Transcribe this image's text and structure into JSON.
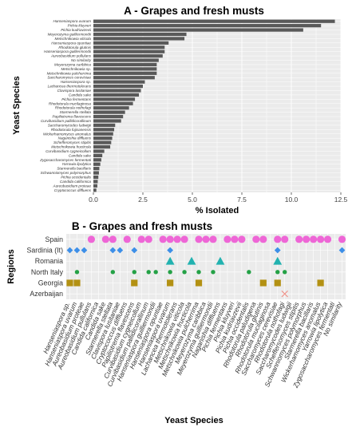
{
  "colors": {
    "bar": "#595959",
    "panel_bg": "#ebebeb",
    "grid_major": "#ffffff",
    "spain": "#ee66d6",
    "sardinia": "#3d8fe8",
    "romania": "#22b2b0",
    "north_italy": "#24a146",
    "georgia": "#b39113",
    "azerbaijan": "#f08a80"
  },
  "chart_data": [
    {
      "type": "bar",
      "orientation": "horizontal",
      "title": "A - Grapes and fresh musts",
      "xlabel": "% Isolated",
      "ylabel": "Yeast Species",
      "xlim": [
        0,
        12.5
      ],
      "xticks": [
        "0.0",
        "2.5",
        "5.0",
        "7.5",
        "10.0",
        "12.5"
      ],
      "grid": true,
      "categories": [
        "Hanseniaspora uvarum",
        "Pichia kluyveri",
        "Pichia kudriavzevii",
        "Meyerozyma guilliermondii",
        "Metschnikowia viticola",
        "Hanseniaspora opuntiae",
        "Rhodotorula glutinis",
        "Hanseniaspora guilliermondii",
        "Aureobasidium pullulans",
        "No similarity",
        "Meyerozyma caribbica",
        "Metschnikowia sp.",
        "Metschnikowia pulcherrima",
        "Saccharomyces cerevisiae",
        "Hanseniaspora sp.",
        "Lachancea thermotolerans",
        "Clavispora lusitaniae",
        "Candida sake",
        "Pichia fermentans",
        "Rhodotorula mucilaginosa",
        "Rhodotorula nothofagi",
        "Starmerella stellata",
        "Papiliotrema flavescens",
        "Curvibasidium pallidicorallinum",
        "Saccharomycodes ludwigii",
        "Rhodotorula fujisanensis",
        "Wickerhamomyces anomalus",
        "Naganishia diffluens",
        "Schefferomyces stipitis",
        "Metschnikowia fructicola",
        "Curvibasidium cygneicollum",
        "Candida sake",
        "Zygosaccharomyces fermentati",
        "Yarrowia lipolytica",
        "Starmerella bacillaris",
        "Schwanniomyces polymorphus",
        "Pichia occidentalis",
        "Candida californica",
        "Aureobasidium proteae",
        "Cryptococcus diffluens"
      ],
      "values": [
        12.2,
        11.5,
        10.6,
        4.7,
        4.6,
        3.8,
        3.6,
        3.6,
        3.5,
        3.3,
        3.2,
        3.2,
        3.2,
        3.1,
        2.6,
        2.5,
        2.4,
        2.3,
        2.1,
        2.0,
        1.8,
        1.6,
        1.5,
        1.4,
        1.1,
        1.05,
        1.0,
        0.95,
        0.9,
        0.85,
        0.55,
        0.45,
        0.4,
        0.35,
        0.3,
        0.28,
        0.25,
        0.22,
        0.2,
        0.15
      ]
    },
    {
      "type": "scatter",
      "title": "B - Grapes and fresh musts",
      "xlabel": "Yeast Species",
      "ylabel": "Regions",
      "grid": true,
      "regions": [
        "Spain",
        "Sardinia (It)",
        "Romania",
        "North Italy",
        "Georgia",
        "Azerbaijan"
      ],
      "species": [
        "Hanseniaspora sp.",
        "Hanseniaspora uvarum",
        "Aureobasidium proteae",
        "Aureobasidium pullulans",
        "Candida californica",
        "Candida sake",
        "Starmerella stellata",
        "Clavispora lusitaniae",
        "Cryptococcus diffluens",
        "Papiliotrema flavescens",
        "Curvibasidium cygneicollum",
        "Curvibasidium pallidicorallinum",
        "Hanseniaspora guilliermondii",
        "Hanseniaspora opuntiae",
        "Hanseniaspora uvarum",
        "Lachancea thermotolerans",
        "Metschnikowia viticola",
        "Metschnikowia fructicola",
        "Metschnikowia pulcherrima",
        "Meyerozyma caribbica",
        "Meyerozyma guilliermondii",
        "Naganishia diffluens",
        "Pichia fermentans",
        "Pichia kluyveri",
        "Pichia kudriavzevii",
        "Pichia occidentalis",
        "Rhodotorula paludigena",
        "Rhodotorula glutinis",
        "Rhodotorula mucilaginosa",
        "Saccharomyces cerevisiae",
        "Rhodotorula nothofagi",
        "Saccharomycodes ludwigii",
        "Scheffersomyces stipitis",
        "Schwanniomyces polymorphus",
        "Starmerella bacillaris",
        "Wickerhamomyces anomalus",
        "Yarrowia lipolytica",
        "Zygosaccharomyces fermentati",
        "No similarity"
      ],
      "presence": {
        "Spain": [
          3,
          5,
          6,
          8,
          10,
          11,
          13,
          14,
          15,
          16,
          18,
          19,
          20,
          22,
          23,
          24,
          26,
          27,
          29,
          30,
          32,
          33,
          34,
          35,
          36,
          38
        ],
        "Sardinia (It)": [
          0,
          1,
          2,
          6,
          7,
          9,
          14,
          29,
          38
        ],
        "Romania": [
          14,
          17,
          21,
          29
        ],
        "North Italy": [
          1,
          6,
          9,
          11,
          12,
          14,
          16,
          18,
          20,
          25,
          29,
          30
        ],
        "Georgia": [
          0,
          1,
          9,
          14,
          18,
          27,
          29,
          35
        ],
        "Azerbaijan": [
          30
        ]
      }
    }
  ]
}
